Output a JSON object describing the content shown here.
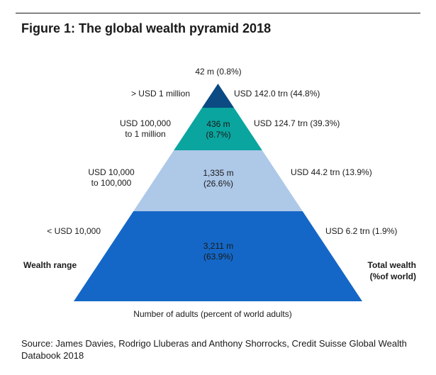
{
  "figure": {
    "title": "Figure 1: The global wealth pyramid 2018",
    "source": "Source: James Davies, Rodrigo Lluberas and Anthony Shorrocks, Credit Suisse Global Wealth Databook 2018"
  },
  "chart_data": {
    "type": "pyramid",
    "title": "Figure 1: The global wealth pyramid 2018",
    "xlabel": "Number of adults (percent of world adults)",
    "left_axis_label": "Wealth range",
    "right_axis_label": [
      "Total wealth",
      "(%of world)"
    ],
    "colors": [
      "#0b4a82",
      "#0aa59f",
      "#aec8e8",
      "#1467c6"
    ],
    "tiers": [
      {
        "wealth_range": [
          "> USD 1 million"
        ],
        "adults_label": [
          "42 m (0.8%)"
        ],
        "adults_millions": 42,
        "adults_pct": 0.8,
        "total_wealth_label": "USD 142.0 trn (44.8%)",
        "total_wealth_trn": 142.0,
        "total_wealth_pct": 44.8
      },
      {
        "wealth_range": [
          "USD 100,000",
          "to 1 million"
        ],
        "adults_label": [
          "436 m",
          "(8.7%)"
        ],
        "adults_millions": 436,
        "adults_pct": 8.7,
        "total_wealth_label": "USD 124.7 trn (39.3%)",
        "total_wealth_trn": 124.7,
        "total_wealth_pct": 39.3
      },
      {
        "wealth_range": [
          "USD 10,000",
          "to 100,000"
        ],
        "adults_label": [
          "1,335 m",
          "(26.6%)"
        ],
        "adults_millions": 1335,
        "adults_pct": 26.6,
        "total_wealth_label": "USD 44.2 trn (13.9%)",
        "total_wealth_trn": 44.2,
        "total_wealth_pct": 13.9
      },
      {
        "wealth_range": [
          "< USD 10,000"
        ],
        "adults_label": [
          "3,211 m",
          "(63.9%)"
        ],
        "adults_millions": 3211,
        "adults_pct": 63.9,
        "total_wealth_label": "USD 6.2 trn (1.9%)",
        "total_wealth_trn": 6.2,
        "total_wealth_pct": 1.9
      }
    ]
  }
}
